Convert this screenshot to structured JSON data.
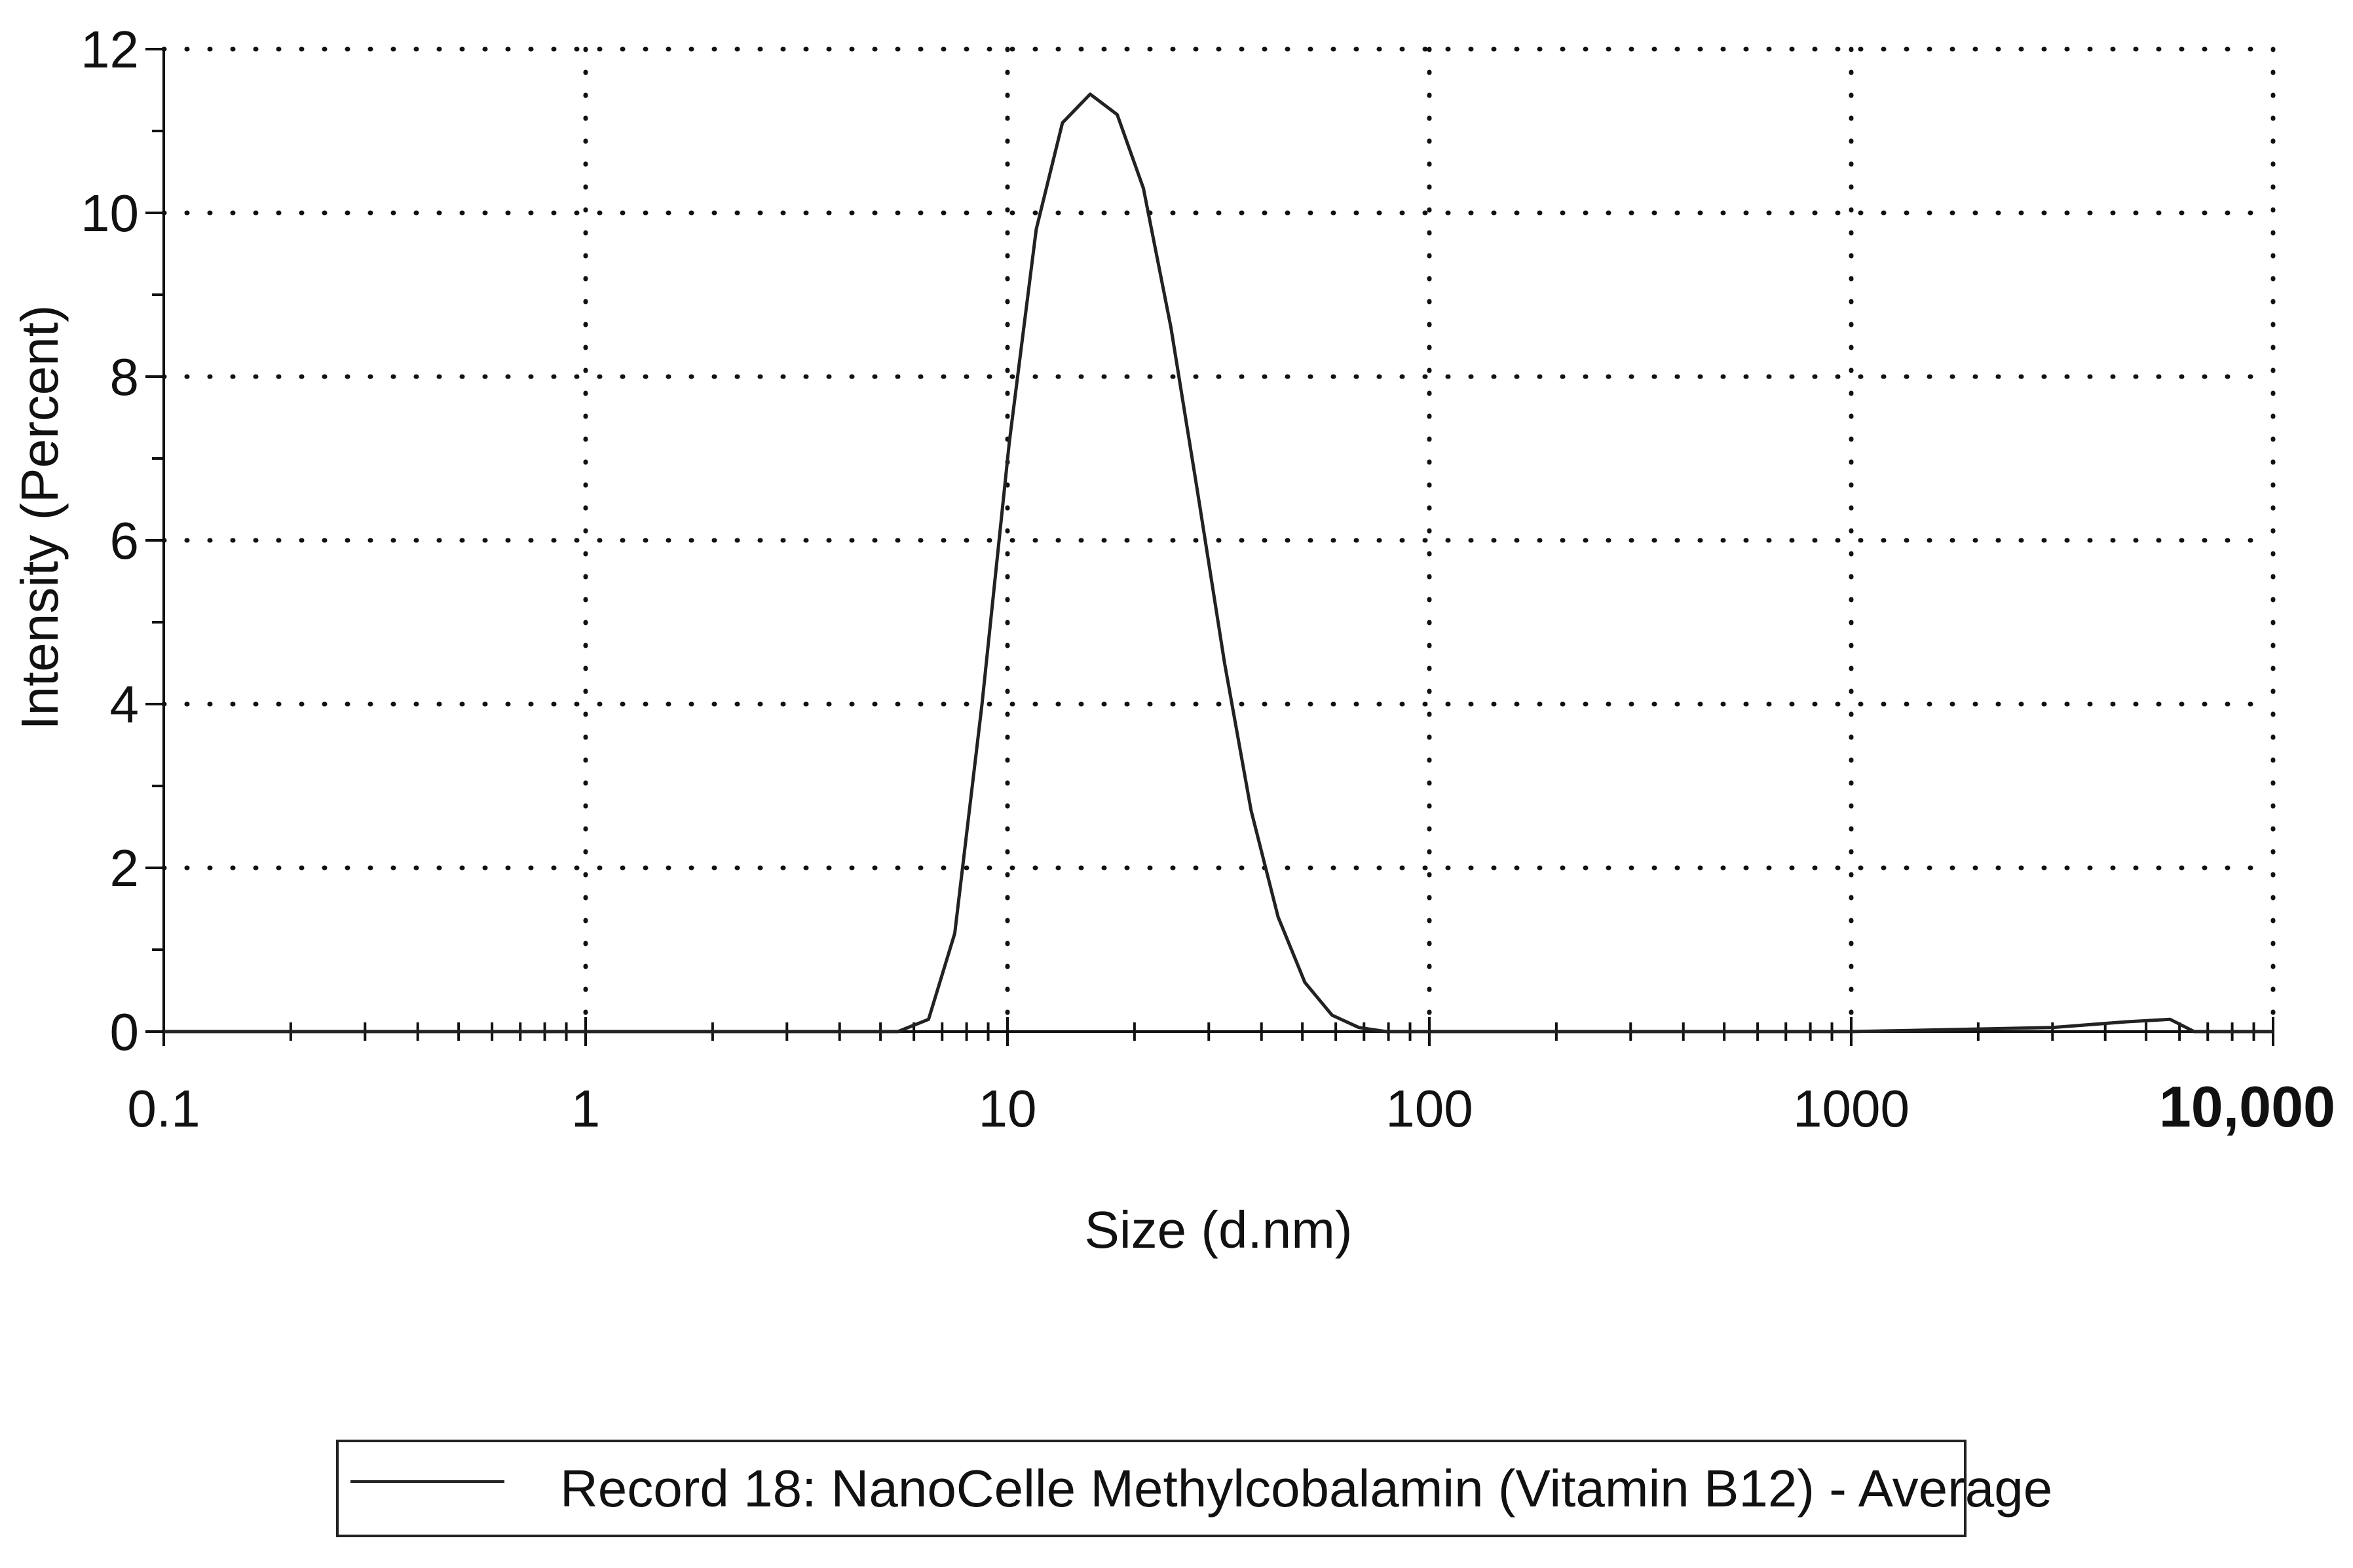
{
  "chart_data": {
    "type": "line",
    "xscale": "log",
    "xlim": [
      0.1,
      10000
    ],
    "ylim": [
      0,
      12
    ],
    "xlabel": "Size (d.nm)",
    "ylabel": "Intensity (Percent)",
    "xticks": [
      {
        "value": 0.1,
        "label": "0.1"
      },
      {
        "value": 1,
        "label": "1"
      },
      {
        "value": 10,
        "label": "10"
      },
      {
        "value": 100,
        "label": "100"
      },
      {
        "value": 1000,
        "label": "1000"
      },
      {
        "value": 10000,
        "label": "10,000"
      }
    ],
    "yticks": [
      0,
      2,
      4,
      6,
      8,
      10,
      12
    ],
    "grid": true,
    "legend_position": "bottom",
    "series": [
      {
        "name": "Record 18: NanoCelle Methylcobalamin (Vitamin B12) - Average",
        "color": "#222222",
        "x": [
          0.1,
          1,
          5.5,
          6.5,
          7.5,
          8.7,
          10.1,
          11.7,
          13.5,
          15.7,
          18.2,
          21.0,
          24.4,
          28.2,
          32.7,
          37.8,
          43.8,
          50.7,
          58.8,
          68.1,
          79,
          100,
          1000,
          3000,
          4500,
          5700,
          6500,
          10000
        ],
        "y": [
          0,
          0,
          0,
          0.15,
          1.2,
          4.0,
          7.2,
          9.8,
          11.1,
          11.45,
          11.2,
          10.3,
          8.6,
          6.6,
          4.5,
          2.7,
          1.4,
          0.6,
          0.2,
          0.05,
          0,
          0,
          0,
          0.05,
          0.12,
          0.15,
          0,
          0
        ]
      }
    ]
  }
}
